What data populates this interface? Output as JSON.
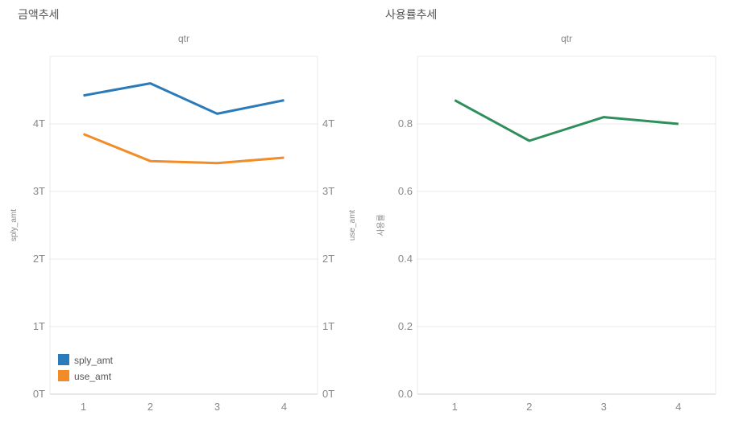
{
  "left_chart": {
    "title": "금액추세",
    "subtitle": "qtr",
    "type": "line",
    "x_values": [
      1,
      2,
      3,
      4
    ],
    "series": [
      {
        "name": "sply_amt",
        "color": "#2b7bba",
        "values": [
          4.42,
          4.6,
          4.15,
          4.35
        ]
      },
      {
        "name": "use_amt",
        "color": "#f28c28",
        "values": [
          3.85,
          3.45,
          3.42,
          3.5
        ]
      }
    ],
    "y_axis_left": {
      "label": "sply_amt",
      "min": 0,
      "max": 5,
      "ticks": [
        0,
        1,
        2,
        3,
        4
      ],
      "tick_fmt": "T"
    },
    "y_axis_right": {
      "label": "use_amt",
      "min": 0,
      "max": 5,
      "ticks": [
        0,
        1,
        2,
        3,
        4
      ],
      "tick_fmt": "T"
    },
    "line_width": 3,
    "legend": {
      "items": [
        {
          "label": "sply_amt",
          "color": "#2b7bba"
        },
        {
          "label": "use_amt",
          "color": "#f28c28"
        }
      ],
      "swatch_size": 14,
      "font_size": 12,
      "text_color": "#555"
    },
    "background_color": "#ffffff",
    "grid_color": "#e8e8e8",
    "tick_color": "#888"
  },
  "right_chart": {
    "title": "사용률추세",
    "subtitle": "qtr",
    "type": "line",
    "x_values": [
      1,
      2,
      3,
      4
    ],
    "series": [
      {
        "name": "사용률",
        "color": "#2f8f5b",
        "values": [
          0.87,
          0.75,
          0.82,
          0.8
        ]
      }
    ],
    "y_axis_left": {
      "label": "사용률",
      "min": 0,
      "max": 1,
      "ticks": [
        0.0,
        0.2,
        0.4,
        0.6,
        0.8
      ]
    },
    "line_width": 3,
    "background_color": "#ffffff",
    "grid_color": "#e8e8e8",
    "tick_color": "#888"
  }
}
